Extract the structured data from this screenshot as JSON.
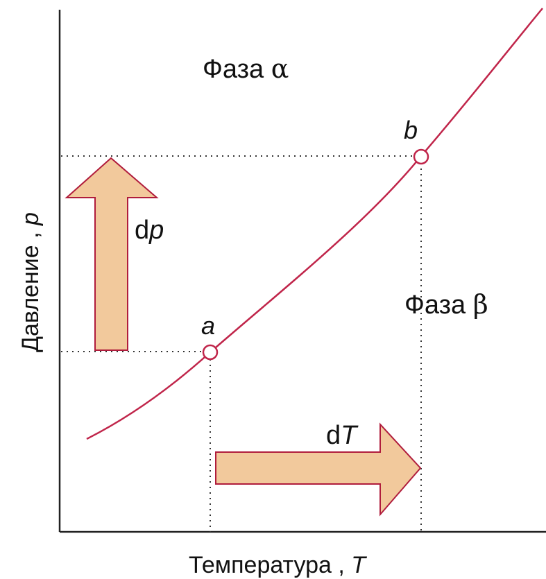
{
  "colors": {
    "curve": "#c0254a",
    "arrow_fill": "#f2c99c",
    "arrow_stroke": "#b01c3c",
    "axis": "#222222",
    "guide": "#333333"
  },
  "labels": {
    "phase_alpha_word": "Фаза ",
    "phase_alpha_symbol": "α",
    "phase_beta_word": "Фаза ",
    "phase_beta_symbol": "β",
    "point_a": "a",
    "point_b": "b",
    "dp_prefix": "d",
    "dp_var": "p",
    "dT_prefix": "d",
    "dT_var": "T",
    "x_axis_word": "Температура , ",
    "x_axis_var": "T",
    "y_axis_word": "Давление , ",
    "y_axis_var": "p"
  }
}
